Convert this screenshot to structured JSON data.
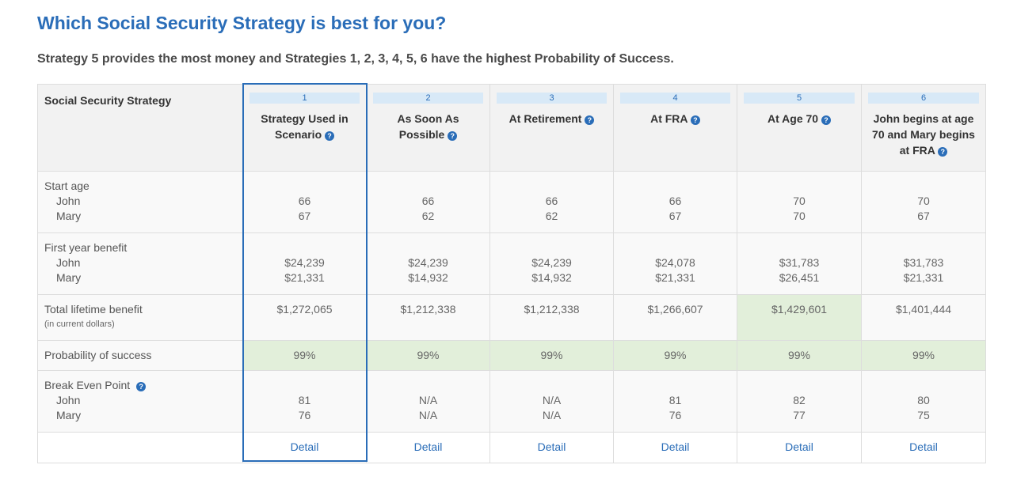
{
  "header": {
    "title": "Which Social Security Strategy is best for you?",
    "summary": "Strategy 5 provides the most money and Strategies 1, 2, 3, 4, 5, 6 have the highest Probability of Success."
  },
  "table": {
    "corner_label": "Social Security Strategy",
    "help_glyph": "?",
    "strategies": [
      {
        "number": "1",
        "name": "Strategy Used in Scenario",
        "start_john": "66",
        "start_mary": "67",
        "benefit_john": "$24,239",
        "benefit_mary": "$21,331",
        "total": "$1,272,065",
        "prob": "99%",
        "be_john": "81",
        "be_mary": "76",
        "detail": "Detail"
      },
      {
        "number": "2",
        "name": "As Soon As Possible",
        "start_john": "66",
        "start_mary": "62",
        "benefit_john": "$24,239",
        "benefit_mary": "$14,932",
        "total": "$1,212,338",
        "prob": "99%",
        "be_john": "N/A",
        "be_mary": "N/A",
        "detail": "Detail"
      },
      {
        "number": "3",
        "name": "At Retirement",
        "start_john": "66",
        "start_mary": "62",
        "benefit_john": "$24,239",
        "benefit_mary": "$14,932",
        "total": "$1,212,338",
        "prob": "99%",
        "be_john": "N/A",
        "be_mary": "N/A",
        "detail": "Detail"
      },
      {
        "number": "4",
        "name": "At FRA",
        "start_john": "66",
        "start_mary": "67",
        "benefit_john": "$24,078",
        "benefit_mary": "$21,331",
        "total": "$1,266,607",
        "prob": "99%",
        "be_john": "81",
        "be_mary": "76",
        "detail": "Detail"
      },
      {
        "number": "5",
        "name": "At Age 70",
        "start_john": "70",
        "start_mary": "70",
        "benefit_john": "$31,783",
        "benefit_mary": "$26,451",
        "total": "$1,429,601",
        "prob": "99%",
        "be_john": "82",
        "be_mary": "77",
        "detail": "Detail"
      },
      {
        "number": "6",
        "name": "John begins at age 70 and Mary begins at FRA",
        "start_john": "70",
        "start_mary": "67",
        "benefit_john": "$31,783",
        "benefit_mary": "$21,331",
        "total": "$1,401,444",
        "prob": "99%",
        "be_john": "80",
        "be_mary": "75",
        "detail": "Detail"
      }
    ],
    "rows": {
      "start_age": "Start age",
      "first_year_benefit": "First year benefit",
      "total_lifetime": "Total lifetime benefit",
      "total_lifetime_note": "(in current dollars)",
      "probability": "Probability of success",
      "break_even": "Break Even Point",
      "person1": "John",
      "person2": "Mary"
    }
  },
  "colors": {
    "accent": "#2a6db8",
    "best_cell": "#e2efda",
    "number_pill": "#d8e9f7"
  }
}
